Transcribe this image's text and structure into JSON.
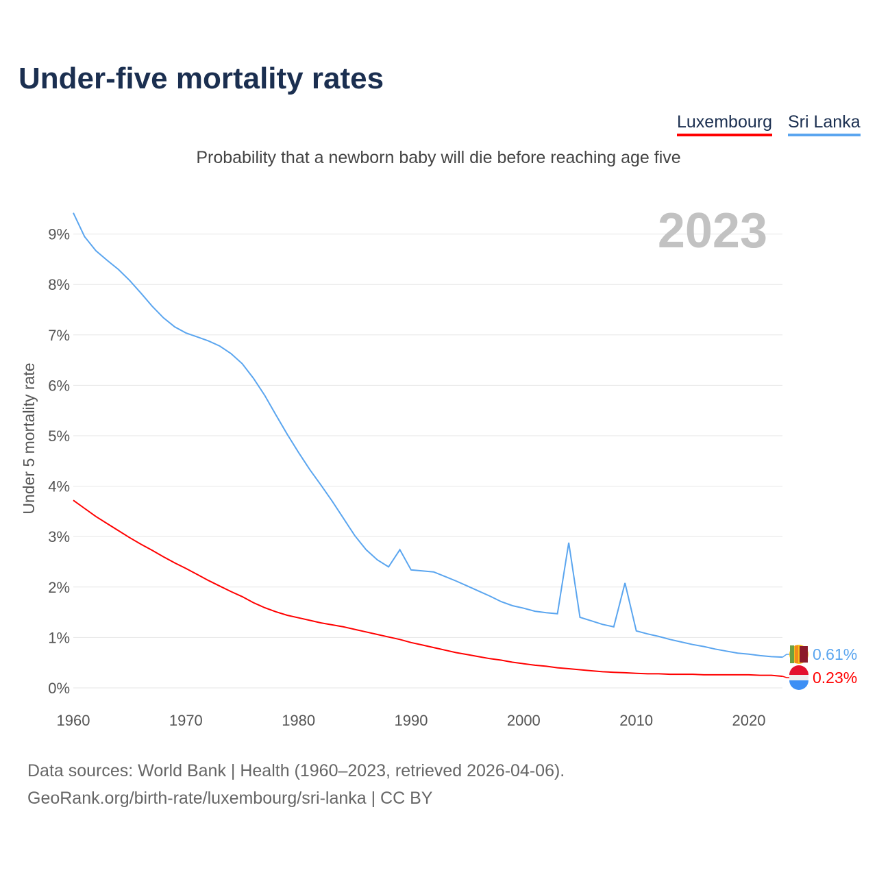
{
  "title": "Under-five mortality rates",
  "legend": {
    "lux": "Luxembourg",
    "sl": "Sri Lanka"
  },
  "footer": {
    "line1": "Data sources: World Bank | Health (1960–2023, retrieved 2026-04-06).",
    "line2": "GeoRank.org/birth-rate/luxembourg/sri-lanka | CC BY"
  },
  "chart_data": {
    "type": "line",
    "title": "Under-five mortality rates",
    "subtitle": "Probability that a newborn baby will die before reaching age five",
    "year_label": "2023",
    "xlabel": "",
    "ylabel": "Under 5 mortality rate",
    "xlim": [
      1960,
      2023
    ],
    "ylim": [
      0,
      9.4
    ],
    "xticks": [
      1960,
      1970,
      1980,
      1990,
      2000,
      2010,
      2020
    ],
    "yticks": [
      0,
      1,
      2,
      3,
      4,
      5,
      6,
      7,
      8,
      9
    ],
    "ytick_labels": [
      "0%",
      "1%",
      "2%",
      "3%",
      "4%",
      "5%",
      "6%",
      "7%",
      "8%",
      "9%"
    ],
    "grid": true,
    "legend_position": "top-right",
    "x_start": 1960,
    "series": [
      {
        "name": "Sri Lanka",
        "color": "#5aa5ef",
        "end_label": "0.61%",
        "flag": "sri-lanka-flag",
        "values": [
          9.42,
          8.95,
          8.67,
          8.48,
          8.3,
          8.08,
          7.83,
          7.57,
          7.34,
          7.16,
          7.04,
          6.96,
          6.88,
          6.78,
          6.63,
          6.43,
          6.14,
          5.8,
          5.41,
          5.03,
          4.67,
          4.33,
          4.02,
          3.7,
          3.36,
          3.02,
          2.74,
          2.54,
          2.4,
          2.74,
          2.34,
          2.32,
          2.3,
          2.21,
          2.12,
          2.02,
          1.92,
          1.82,
          1.71,
          1.63,
          1.58,
          1.52,
          1.49,
          1.47,
          2.88,
          1.4,
          1.33,
          1.26,
          1.21,
          2.08,
          1.13,
          1.07,
          1.02,
          0.96,
          0.91,
          0.86,
          0.82,
          0.77,
          0.73,
          0.69,
          0.67,
          0.64,
          0.62,
          0.61
        ]
      },
      {
        "name": "Luxembourg",
        "color": "#ff0000",
        "end_label": "0.23%",
        "flag": "luxembourg-flag",
        "values": [
          3.72,
          3.56,
          3.4,
          3.26,
          3.12,
          2.98,
          2.85,
          2.73,
          2.6,
          2.48,
          2.37,
          2.25,
          2.13,
          2.02,
          1.91,
          1.81,
          1.69,
          1.59,
          1.51,
          1.44,
          1.39,
          1.34,
          1.29,
          1.25,
          1.21,
          1.16,
          1.11,
          1.06,
          1.01,
          0.96,
          0.9,
          0.85,
          0.8,
          0.75,
          0.7,
          0.66,
          0.62,
          0.58,
          0.55,
          0.51,
          0.48,
          0.45,
          0.43,
          0.4,
          0.38,
          0.36,
          0.34,
          0.32,
          0.31,
          0.3,
          0.29,
          0.28,
          0.28,
          0.27,
          0.27,
          0.27,
          0.26,
          0.26,
          0.26,
          0.26,
          0.26,
          0.25,
          0.25,
          0.23
        ]
      }
    ]
  }
}
